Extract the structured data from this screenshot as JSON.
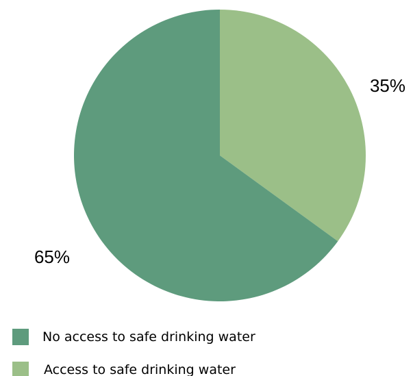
{
  "chart_data": {
    "type": "pie",
    "title": "",
    "legend_position": "bottom-left",
    "slices": [
      {
        "label": "Access to safe drinking water",
        "value": 35,
        "value_label": "35%",
        "color": "#9bbf88"
      },
      {
        "label": "No access to safe drinking water",
        "value": 65,
        "value_label": "65%",
        "color": "#5e9b7d"
      }
    ],
    "legend": [
      {
        "label": "No access to safe drinking water",
        "color": "#5e9b7d"
      },
      {
        "label": "Access to safe drinking water",
        "color": "#9bbf88"
      }
    ]
  }
}
